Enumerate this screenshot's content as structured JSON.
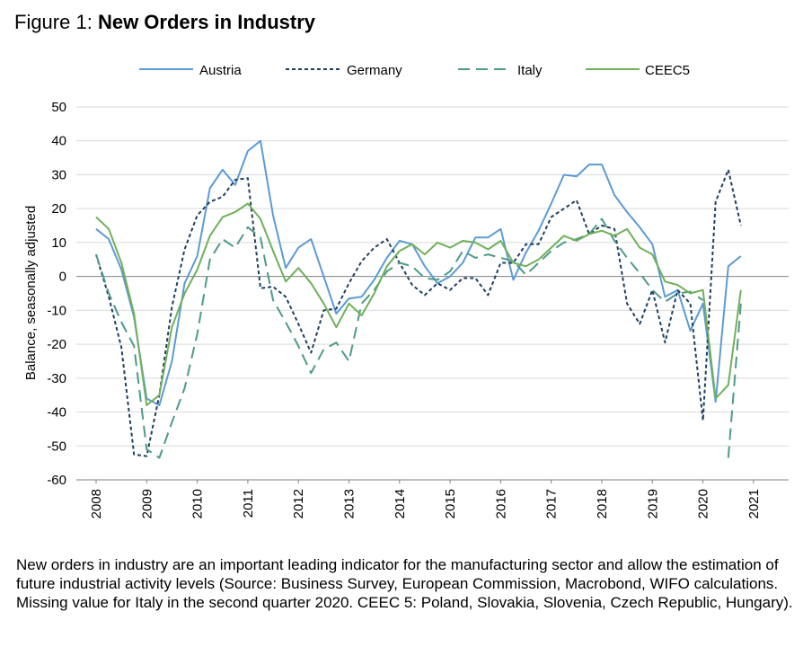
{
  "figure": {
    "label": "Figure 1:",
    "title": "New Orders in Industry",
    "note": "New orders in industry are an important leading indicator for the manufacturing sector and allow the estimation of future industrial activity levels (Source: Business Survey, European Commission, Macrobond, WIFO calculations. Missing value for Italy in the second quarter 2020. CEEC 5: Poland, Slovakia, Slovenia, Czech Republic, Hungary)."
  },
  "colors": {
    "austria": "#5b9bd5",
    "germany": "#1f3f5f",
    "italy": "#4e9a8a",
    "ceec5": "#70b05a",
    "grid": "#d9d9d9",
    "axis": "#808080"
  },
  "chart_data": {
    "type": "line",
    "title": "New Orders in Industry",
    "xlabel": "",
    "ylabel": "Balance, seasonally adjusted",
    "ylim": [
      -60,
      50
    ],
    "yticks": [
      50,
      40,
      30,
      20,
      10,
      0,
      -10,
      -20,
      -30,
      -40,
      -50,
      -60
    ],
    "xlim": [
      2008.0,
      2021.25
    ],
    "xticks": [
      2008,
      2009,
      2010,
      2011,
      2012,
      2013,
      2014,
      2015,
      2016,
      2017,
      2018,
      2019,
      2020,
      2021
    ],
    "grid": "horizontal",
    "legend": "top",
    "series": [
      {
        "name": "Austria",
        "style": "solid",
        "x": [
          2008.0,
          2008.25,
          2008.5,
          2008.75,
          2009.0,
          2009.25,
          2009.5,
          2009.75,
          2010.0,
          2010.25,
          2010.5,
          2010.75,
          2011.0,
          2011.25,
          2011.5,
          2011.75,
          2012.0,
          2012.25,
          2012.5,
          2012.75,
          2013.0,
          2013.25,
          2013.5,
          2013.75,
          2014.0,
          2014.25,
          2014.5,
          2014.75,
          2015.0,
          2015.25,
          2015.5,
          2015.75,
          2016.0,
          2016.25,
          2016.5,
          2016.75,
          2017.0,
          2017.25,
          2017.5,
          2017.75,
          2018.0,
          2018.25,
          2018.5,
          2018.75,
          2019.0,
          2019.25,
          2019.5,
          2019.75,
          2020.0,
          2020.25,
          2020.5,
          2020.75
        ],
        "y": [
          14,
          11,
          2,
          -12,
          -36,
          -38,
          -25,
          -2,
          6,
          26,
          31.5,
          27,
          37,
          40,
          18,
          2.5,
          8.5,
          11,
          0,
          -11,
          -6.5,
          -6,
          -1,
          5.5,
          10.5,
          9.5,
          3,
          -2,
          0,
          4,
          11.5,
          11.5,
          14,
          -1,
          7,
          13.5,
          21.5,
          30,
          29.5,
          33,
          33,
          24,
          19,
          14.5,
          9.5,
          -6,
          -4,
          -16,
          -8,
          -37,
          3,
          6
        ]
      },
      {
        "name": "Germany",
        "style": "short-dash",
        "x": [
          2008.0,
          2008.25,
          2008.5,
          2008.75,
          2009.0,
          2009.25,
          2009.5,
          2009.75,
          2010.0,
          2010.25,
          2010.5,
          2010.75,
          2011.0,
          2011.25,
          2011.5,
          2011.75,
          2012.0,
          2012.25,
          2012.5,
          2012.75,
          2013.0,
          2013.25,
          2013.5,
          2013.75,
          2014.0,
          2014.25,
          2014.5,
          2014.75,
          2015.0,
          2015.25,
          2015.5,
          2015.75,
          2016.0,
          2016.25,
          2016.5,
          2016.75,
          2017.0,
          2017.25,
          2017.5,
          2017.75,
          2018.0,
          2018.25,
          2018.5,
          2018.75,
          2019.0,
          2019.25,
          2019.5,
          2019.75,
          2020.0,
          2020.25,
          2020.5,
          2020.75
        ],
        "y": [
          6.5,
          -6,
          -21,
          -52.5,
          -53,
          -35,
          -9,
          8,
          18,
          22,
          23.5,
          28.5,
          29,
          -3.5,
          -3,
          -6,
          -14,
          -22.5,
          -10,
          -9.5,
          -2,
          4.5,
          8.5,
          11,
          4,
          -2.5,
          -5.5,
          -2,
          -4,
          -0.5,
          -0.5,
          -5.5,
          4,
          4,
          9.5,
          9.5,
          17.5,
          20,
          22.5,
          12.5,
          15,
          14,
          -8,
          -14,
          -4,
          -19.5,
          -4,
          -8,
          -42.5,
          22,
          31.5,
          15
        ]
      },
      {
        "name": "Italy",
        "style": "long-dash",
        "x": [
          2008.0,
          2008.25,
          2008.5,
          2008.75,
          2009.0,
          2009.25,
          2009.5,
          2009.75,
          2010.0,
          2010.25,
          2010.5,
          2010.75,
          2011.0,
          2011.25,
          2011.5,
          2011.75,
          2012.0,
          2012.25,
          2012.5,
          2012.75,
          2013.0,
          2013.25,
          2013.5,
          2013.75,
          2014.0,
          2014.25,
          2014.5,
          2014.75,
          2015.0,
          2015.25,
          2015.5,
          2015.75,
          2016.0,
          2016.25,
          2016.5,
          2016.75,
          2017.0,
          2017.25,
          2017.5,
          2017.75,
          2018.0,
          2018.25,
          2018.5,
          2018.75,
          2019.0,
          2019.25,
          2019.5,
          2019.75,
          2020.0,
          2020.25,
          2020.5,
          2020.75
        ],
        "y": [
          6.5,
          -5,
          -13.5,
          -20.5,
          -51,
          -53.5,
          -43,
          -33,
          -17,
          5,
          11,
          8.5,
          14.5,
          11.5,
          -7,
          -13.5,
          -20.5,
          -28.5,
          -21.5,
          -19.5,
          -25,
          -8,
          -4,
          1.5,
          4,
          3,
          -0.5,
          -1,
          1.5,
          7.5,
          5.5,
          6.5,
          5.5,
          4.5,
          0.5,
          4,
          7.5,
          10,
          11,
          12.5,
          17,
          10.5,
          5.5,
          1,
          -4,
          -7.5,
          -5,
          -4.5,
          -7,
          null,
          -53.5,
          -8
        ]
      },
      {
        "name": "CEEC5",
        "style": "solid",
        "x": [
          2008.0,
          2008.25,
          2008.5,
          2008.75,
          2009.0,
          2009.25,
          2009.5,
          2009.75,
          2010.0,
          2010.25,
          2010.5,
          2010.75,
          2011.0,
          2011.25,
          2011.5,
          2011.75,
          2012.0,
          2012.25,
          2012.5,
          2012.75,
          2013.0,
          2013.25,
          2013.5,
          2013.75,
          2014.0,
          2014.25,
          2014.5,
          2014.75,
          2015.0,
          2015.25,
          2015.5,
          2015.75,
          2016.0,
          2016.25,
          2016.5,
          2016.75,
          2017.0,
          2017.25,
          2017.5,
          2017.75,
          2018.0,
          2018.25,
          2018.5,
          2018.75,
          2019.0,
          2019.25,
          2019.5,
          2019.75,
          2020.0,
          2020.25,
          2020.5,
          2020.75
        ],
        "y": [
          17.5,
          14,
          4,
          -11,
          -38,
          -35,
          -15,
          -5,
          2,
          12,
          17.5,
          19,
          21.5,
          17,
          7.5,
          -1.5,
          2.5,
          -2,
          -8,
          -15,
          -8,
          -11.5,
          -5,
          3,
          7.5,
          9.5,
          6.5,
          10,
          8.5,
          10.5,
          10,
          8,
          10.5,
          4,
          3,
          5,
          8.5,
          12,
          10.5,
          12.5,
          13.5,
          12,
          14,
          8.5,
          6.5,
          -1.5,
          -2.5,
          -5,
          -4,
          -36,
          -32,
          -4
        ]
      }
    ]
  }
}
